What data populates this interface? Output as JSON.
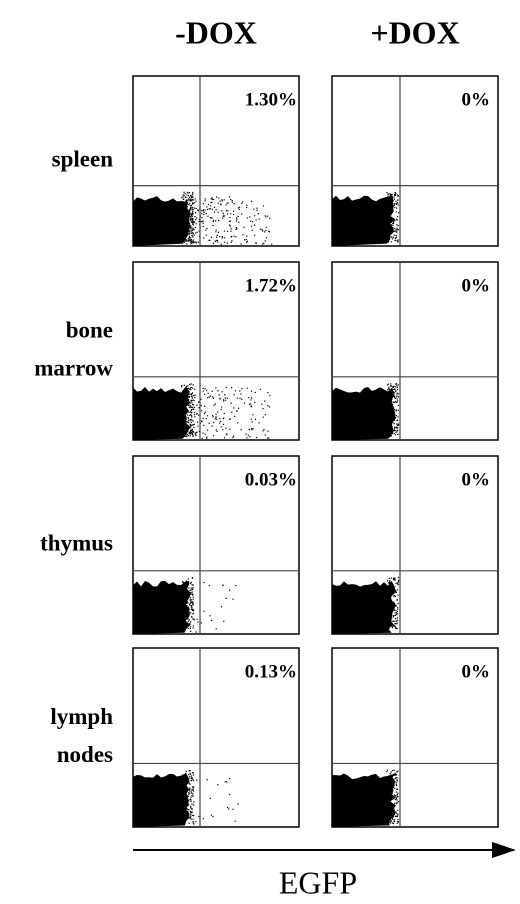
{
  "columns": [
    "-DOX",
    "+DOX"
  ],
  "rows": [
    {
      "label": [
        "spleen"
      ],
      "values": [
        "1.30%",
        "0%"
      ]
    },
    {
      "label": [
        "bone",
        "marrow"
      ],
      "values": [
        "1.72%",
        "0%"
      ]
    },
    {
      "label": [
        "thymus"
      ],
      "values": [
        "0.03%",
        "0%"
      ]
    },
    {
      "label": [
        "lymph",
        "nodes"
      ],
      "values": [
        "0.13%",
        "0%"
      ]
    }
  ],
  "x_axis_label": "EGFP"
}
